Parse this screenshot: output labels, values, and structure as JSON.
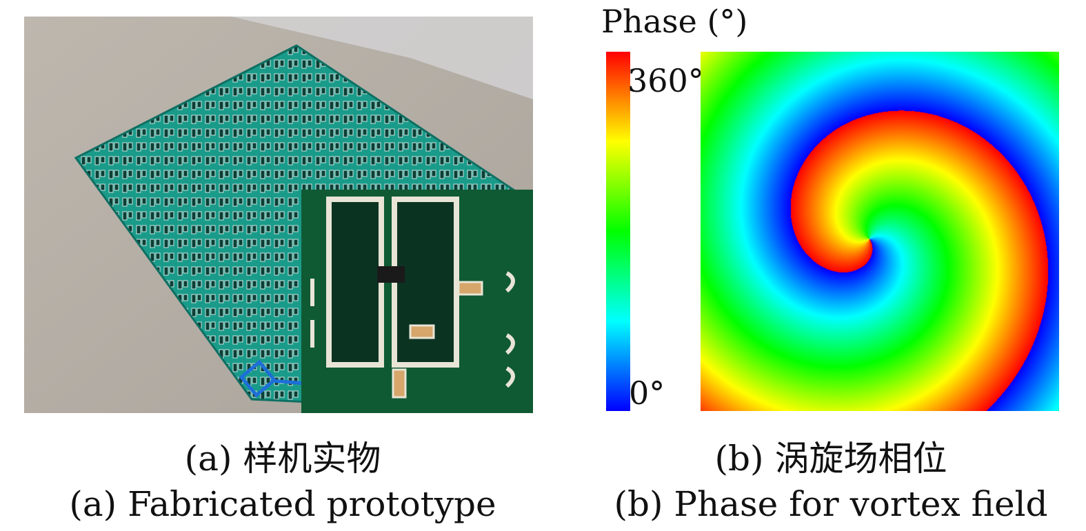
{
  "panel_a": {
    "caption_cn": "(a) 样机实物",
    "caption_en": "(a) Fabricated prototype"
  },
  "panel_b": {
    "caption_cn": "(b) 涡旋场相位",
    "caption_en": "(b) Phase for vortex field",
    "colorbar": {
      "title": "Phase (°)",
      "max_label": "360°",
      "min_label": "0°",
      "colormap": [
        "#0000ff",
        "#00ffff",
        "#00ff00",
        "#ffff00",
        "#ff0000"
      ]
    }
  },
  "colors": {
    "pcb_green": "#1a9b8a",
    "inset_green": "#0f5a33",
    "background_gray": "#b8b2aa",
    "highlight_blue": "#1e6fd8"
  }
}
